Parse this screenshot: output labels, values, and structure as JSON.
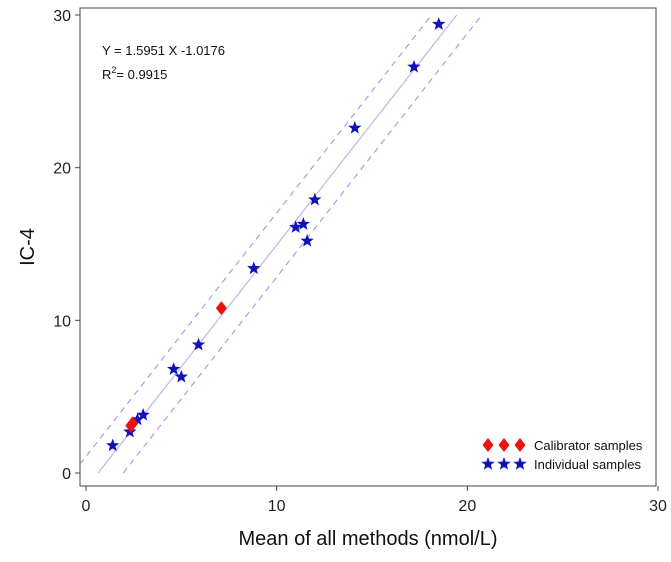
{
  "chart_data": {
    "type": "scatter",
    "title": "",
    "xlabel": "Mean of all methods (nmol/L)",
    "ylabel": "IC-4",
    "xlim": [
      0,
      30
    ],
    "ylim": [
      0,
      30
    ],
    "xticks": [
      0,
      10,
      20,
      30
    ],
    "yticks": [
      0,
      10,
      20,
      30
    ],
    "grid": false,
    "legend_position": "bottom-right",
    "colors": {
      "calibrator": "#ee1111",
      "individual": "#1111bb",
      "fit_line": "#b8b8ee",
      "band_line": "#9a9ae6"
    },
    "annotations": {
      "equation": "Y = 1.5951 X -1.0176",
      "r2_prefix": "R",
      "r2_sup": "2",
      "r2_suffix": "= 0.9915"
    },
    "regression": {
      "slope": 1.5951,
      "intercept": -1.0176,
      "band_offset": 2.1
    },
    "series": [
      {
        "name": "Calibrator samples",
        "marker": "diamond",
        "points": [
          {
            "x": 2.35,
            "y": 3.1
          },
          {
            "x": 2.45,
            "y": 3.25
          },
          {
            "x": 7.1,
            "y": 10.8
          }
        ]
      },
      {
        "name": "Individual samples",
        "marker": "star",
        "points": [
          {
            "x": 1.4,
            "y": 1.8
          },
          {
            "x": 2.3,
            "y": 2.7
          },
          {
            "x": 2.7,
            "y": 3.5
          },
          {
            "x": 3.0,
            "y": 3.8
          },
          {
            "x": 4.6,
            "y": 6.8
          },
          {
            "x": 5.0,
            "y": 6.3
          },
          {
            "x": 5.9,
            "y": 8.4
          },
          {
            "x": 8.8,
            "y": 13.4
          },
          {
            "x": 11.0,
            "y": 16.1
          },
          {
            "x": 11.4,
            "y": 16.3
          },
          {
            "x": 11.6,
            "y": 15.2
          },
          {
            "x": 12.0,
            "y": 17.9
          },
          {
            "x": 14.1,
            "y": 22.6
          },
          {
            "x": 17.2,
            "y": 26.6
          },
          {
            "x": 18.5,
            "y": 29.4
          }
        ]
      }
    ]
  }
}
